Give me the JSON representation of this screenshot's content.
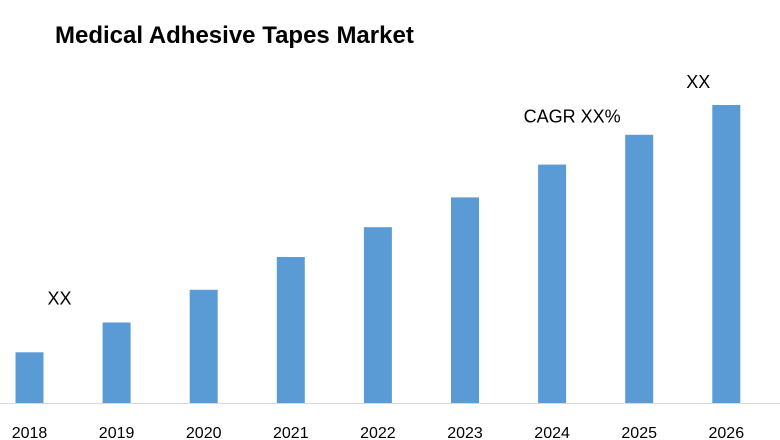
{
  "chart_data": {
    "type": "bar",
    "title": "Medical Adhesive Tapes Market",
    "categories": [
      "2018",
      "2019",
      "2020",
      "2021",
      "2022",
      "2023",
      "2024",
      "2025",
      "2026"
    ],
    "values": [
      17,
      27,
      38,
      49,
      59,
      69,
      80,
      90,
      100
    ],
    "xlabel": "",
    "ylabel": "",
    "ylim": [
      0,
      100
    ],
    "grid": false,
    "legend": "none",
    "bar_color": "#5B9BD5",
    "axis_color": "#D9D9D9",
    "annotations": [
      {
        "text": "XX",
        "category": "2018"
      },
      {
        "text": "CAGR XX%",
        "category": "2024"
      },
      {
        "text": "XX",
        "category": "2026"
      }
    ]
  }
}
